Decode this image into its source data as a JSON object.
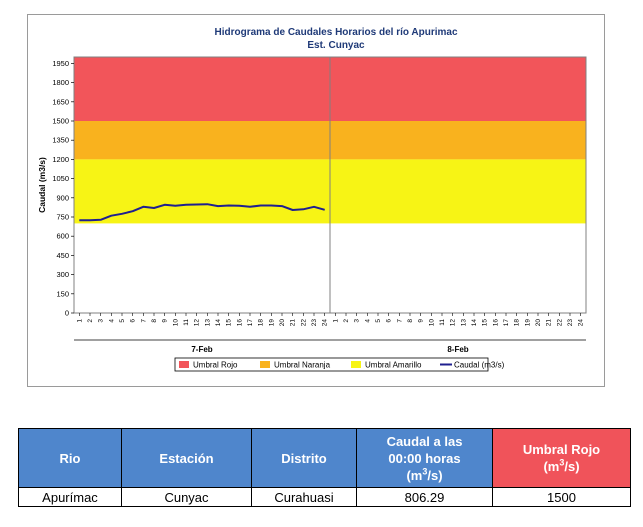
{
  "chart_data": {
    "type": "line",
    "title": "Hidrograma de Caudales Horarios del río Apurimac",
    "subtitle": "Est. Cunyac",
    "ylabel": "Caudal  (m3/s)",
    "ylim": [
      0,
      2000
    ],
    "yticks": [
      0,
      150,
      300,
      450,
      600,
      750,
      900,
      1050,
      1200,
      1350,
      1500,
      1650,
      1800,
      1950
    ],
    "xgroups": [
      "7-Feb",
      "8-Feb"
    ],
    "hours_per_group": 24,
    "grid": false,
    "thresholds": [
      {
        "name": "Umbral Rojo",
        "from": 1500,
        "to": 2000,
        "color": "#f2555a"
      },
      {
        "name": "Umbral Naranja",
        "from": 1200,
        "to": 1500,
        "color": "#f9b21e"
      },
      {
        "name": "Umbral Amarillo",
        "from": 700,
        "to": 1200,
        "color": "#f7f415"
      }
    ],
    "series": [
      {
        "name": "Caudal (m3/s)",
        "color": "#1f1f8f",
        "x": [
          1,
          2,
          3,
          4,
          5,
          6,
          7,
          8,
          9,
          10,
          11,
          12,
          13,
          14,
          15,
          16,
          17,
          18,
          19,
          20,
          21,
          22,
          23,
          24
        ],
        "values": [
          725,
          725,
          728,
          760,
          775,
          795,
          830,
          820,
          845,
          838,
          845,
          848,
          850,
          835,
          840,
          838,
          830,
          840,
          840,
          835,
          805,
          810,
          830,
          806
        ]
      }
    ],
    "legend": {
      "position": "bottom",
      "items": [
        {
          "label": "Umbral Rojo",
          "color": "#f2555a",
          "kind": "box"
        },
        {
          "label": "Umbral Naranja",
          "color": "#f9b21e",
          "kind": "box"
        },
        {
          "label": "Umbral Amarillo",
          "color": "#f7f415",
          "kind": "box"
        },
        {
          "label": "Caudal (m3/s)",
          "color": "#1f1f8f",
          "kind": "line"
        }
      ]
    }
  },
  "table": {
    "headers": {
      "rio": "Rio",
      "estacion": "Estación",
      "distrito": "Distrito",
      "caudal_line1": "Caudal a las",
      "caudal_line2": "00:00 horas",
      "caudal_unit": "(m",
      "caudal_unit_sup": "3",
      "caudal_unit_end": "/s)",
      "umbral_line1": "Umbral Rojo",
      "umbral_unit": "(m",
      "umbral_unit_sup": "3",
      "umbral_unit_end": "/s)"
    },
    "row": {
      "rio": "Apurímac",
      "estacion": "Cunyac",
      "distrito": "Curahuasi",
      "caudal": "806.29",
      "umbral": "1500"
    }
  }
}
